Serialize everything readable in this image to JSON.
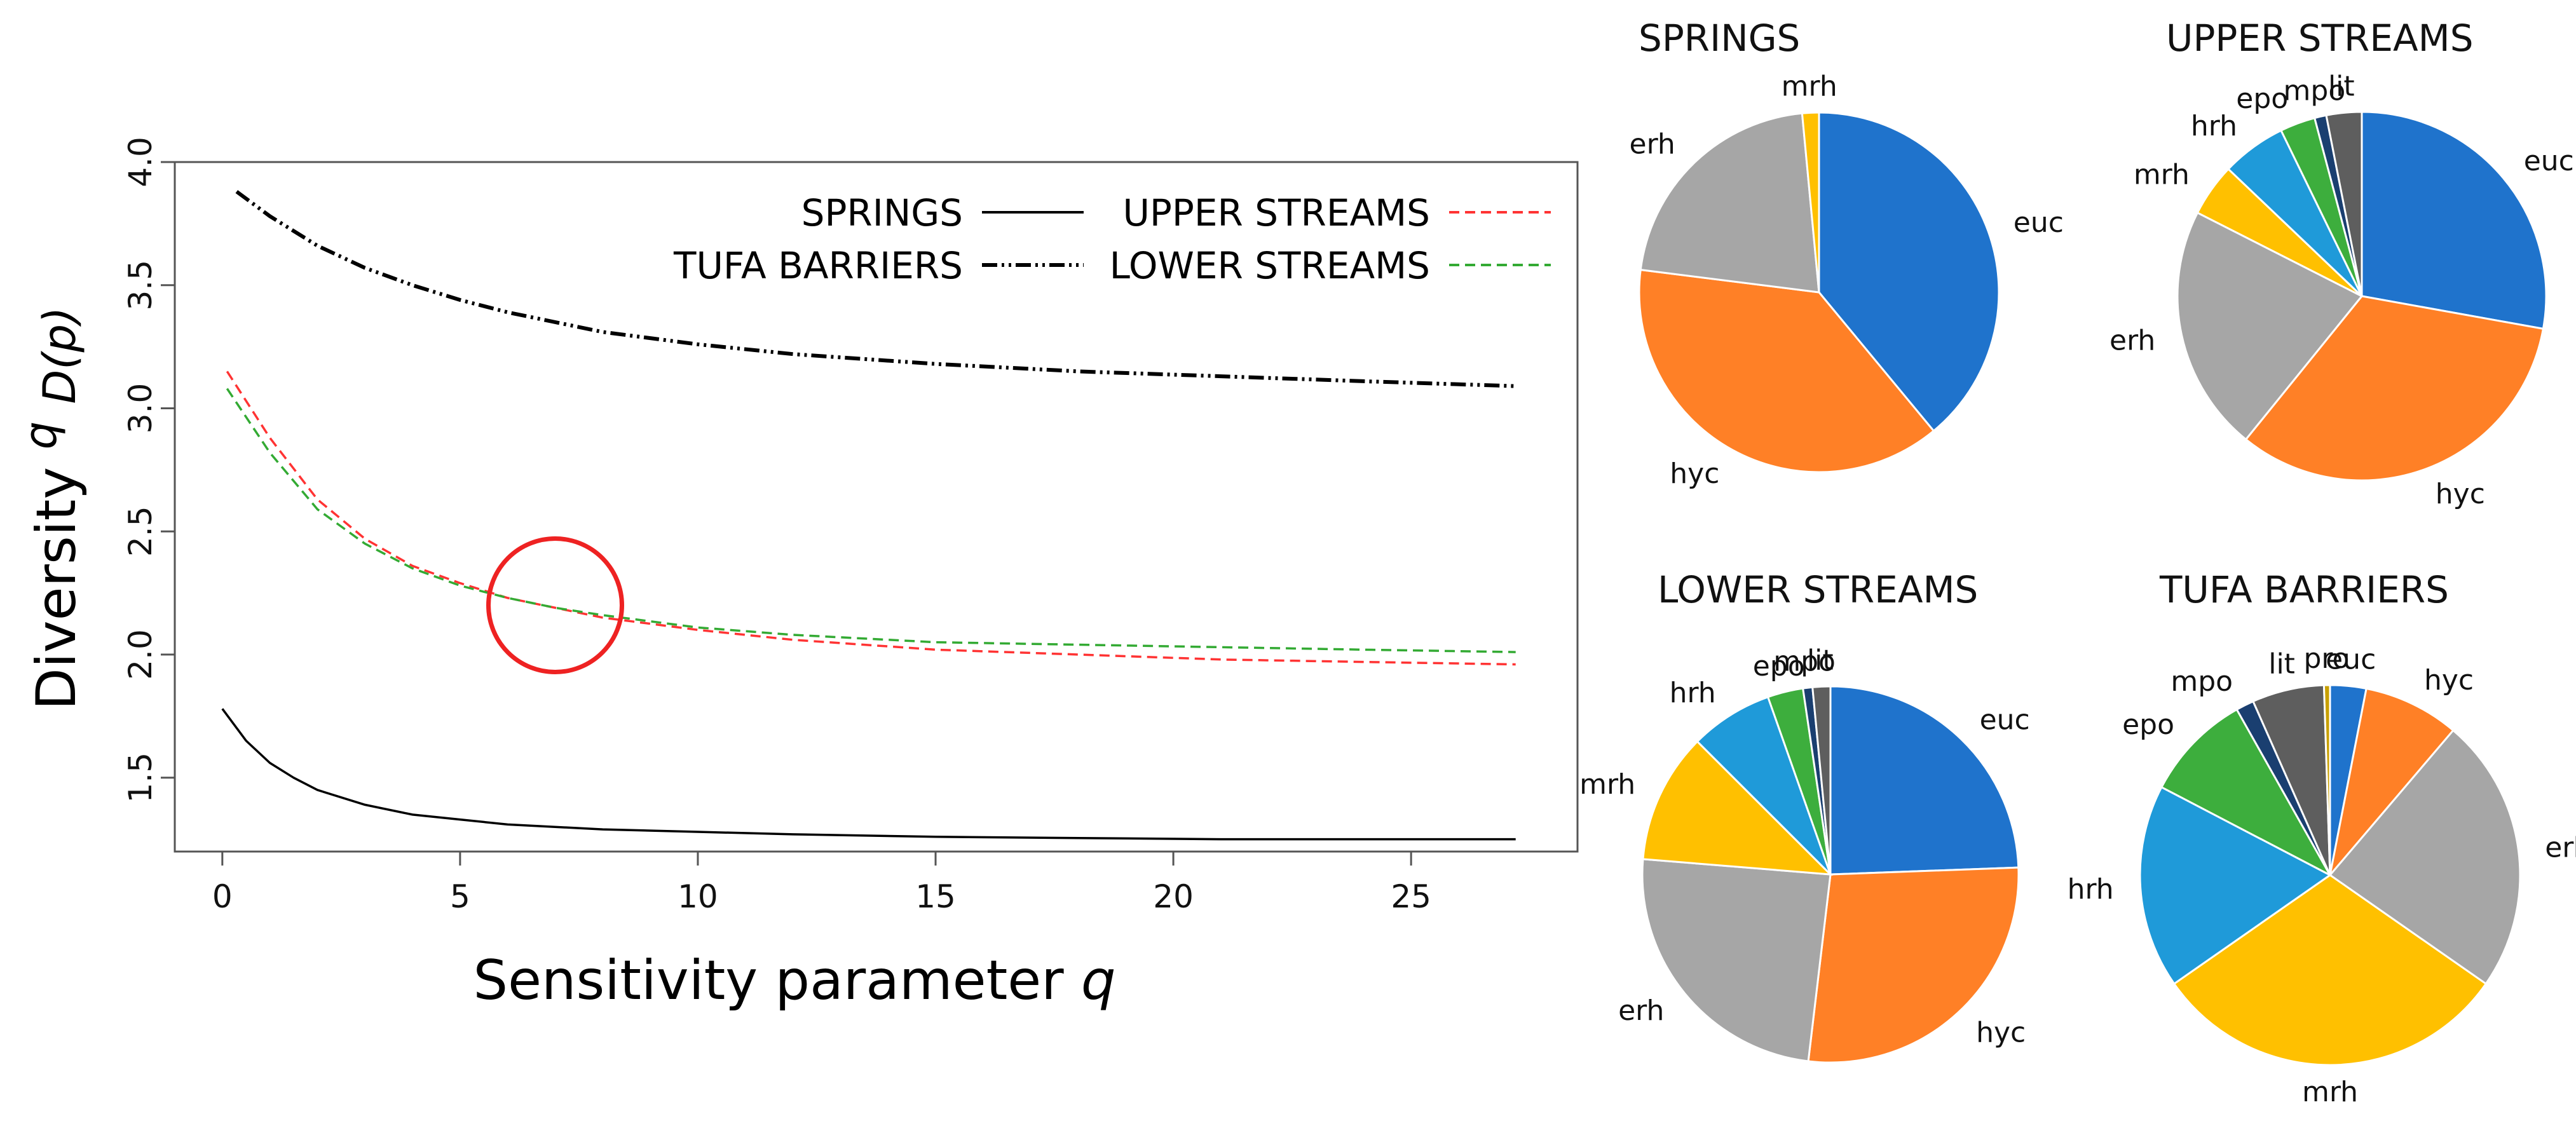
{
  "chart_data": [
    {
      "type": "line",
      "xlabel": "Sensitivity parameter",
      "xlabel_var": "q",
      "ylabel": "Diversity",
      "ylabel_sup": "q",
      "ylabel_sub": "D(p)",
      "xlim": [
        -1,
        28.5
      ],
      "ylim": [
        1.2,
        4.0
      ],
      "xticks": [
        0,
        5,
        10,
        15,
        20,
        25
      ],
      "yticks": [
        1.5,
        2.0,
        2.5,
        3.0,
        3.5,
        4.0
      ],
      "xtick_labels": [
        "0",
        "5",
        "10",
        "15",
        "20",
        "25"
      ],
      "ytick_labels": [
        "1.5",
        "2.0",
        "2.5",
        "3.0",
        "3.5",
        "4.0"
      ],
      "legend": {
        "rows": [
          [
            {
              "label": "SPRINGS",
              "series": 0
            },
            {
              "label": "UPPER STREAMS",
              "series": 1
            }
          ],
          [
            {
              "label": "TUFA BARRIERS",
              "series": 3
            },
            {
              "label": "LOWER STREAMS",
              "series": 2
            }
          ]
        ]
      },
      "annotation": {
        "shape": "circle",
        "color": "#ee2222",
        "x": 7.0,
        "y": 2.2,
        "note": "curve crossing"
      },
      "series": [
        {
          "name": "SPRINGS",
          "color": "#000000",
          "dash": "solid",
          "x": [
            0,
            0.5,
            1,
            1.5,
            2,
            3,
            4,
            5,
            6,
            8,
            10,
            12,
            15,
            18,
            21,
            24,
            27.2
          ],
          "y": [
            1.78,
            1.65,
            1.56,
            1.5,
            1.45,
            1.39,
            1.35,
            1.33,
            1.31,
            1.29,
            1.28,
            1.27,
            1.26,
            1.255,
            1.25,
            1.25,
            1.25
          ]
        },
        {
          "name": "UPPER STREAMS",
          "color": "#ff3333",
          "dash": "dashed",
          "x": [
            0.1,
            1,
            2,
            3,
            4,
            5,
            6,
            7,
            8,
            10,
            12,
            15,
            18,
            21,
            24,
            27.2
          ],
          "y": [
            3.15,
            2.88,
            2.63,
            2.47,
            2.36,
            2.29,
            2.23,
            2.19,
            2.15,
            2.1,
            2.06,
            2.02,
            2.0,
            1.98,
            1.97,
            1.96
          ]
        },
        {
          "name": "LOWER STREAMS",
          "color": "#33aa33",
          "dash": "dashed",
          "x": [
            0.1,
            1,
            2,
            3,
            4,
            5,
            6,
            7,
            8,
            10,
            12,
            15,
            18,
            21,
            24,
            27.2
          ],
          "y": [
            3.08,
            2.82,
            2.59,
            2.45,
            2.35,
            2.28,
            2.23,
            2.19,
            2.16,
            2.11,
            2.08,
            2.05,
            2.04,
            2.03,
            2.02,
            2.01
          ]
        },
        {
          "name": "TUFA BARRIERS",
          "color": "#000000",
          "dash": "dashdotdot",
          "x": [
            0.3,
            1,
            2,
            3,
            4,
            5,
            6,
            8,
            10,
            12,
            15,
            18,
            21,
            24,
            27.2
          ],
          "y": [
            3.88,
            3.78,
            3.66,
            3.57,
            3.5,
            3.44,
            3.39,
            3.31,
            3.26,
            3.22,
            3.18,
            3.15,
            3.13,
            3.11,
            3.09
          ]
        }
      ]
    },
    {
      "type": "pie",
      "title": "SPRINGS",
      "labels": [
        "euc",
        "hyc",
        "erh",
        "mrh"
      ],
      "values": [
        39,
        38,
        21.5,
        1.5
      ],
      "colors": [
        "#1f73cc",
        "#ff8026",
        "#a6a6a6",
        "#ffc000"
      ],
      "label_positions": [
        {
          "label": "euc",
          "position": "right"
        },
        {
          "label": "hyc",
          "position": "bottom-left"
        },
        {
          "label": "erh",
          "position": "top-left"
        },
        {
          "label": "mrh",
          "position": "top"
        }
      ]
    },
    {
      "type": "pie",
      "title": "UPPER STREAMS",
      "labels": [
        "euc",
        "hyc",
        "erh",
        "mrh",
        "hrh",
        "epo",
        "mpo",
        "lit"
      ],
      "values": [
        27,
        32,
        21,
        4.5,
        5.5,
        3,
        1,
        3
      ],
      "colors": [
        "#1f73cc",
        "#ff8026",
        "#a6a6a6",
        "#ffc000",
        "#1f9ad9",
        "#3dae3d",
        "#1a3f70",
        "#5e5e5e"
      ]
    },
    {
      "type": "pie",
      "title": "LOWER STREAMS",
      "labels": [
        "euc",
        "hyc",
        "erh",
        "mrh",
        "hrh",
        "epo",
        "mpo",
        "lit"
      ],
      "values": [
        24,
        27,
        24,
        11,
        7,
        3,
        0.8,
        1.5
      ],
      "colors": [
        "#1f73cc",
        "#ff8026",
        "#a6a6a6",
        "#ffc000",
        "#1f9ad9",
        "#3dae3d",
        "#1a3f70",
        "#5e5e5e"
      ]
    },
    {
      "type": "pie",
      "title": "TUFA BARRIERS",
      "labels": [
        "euc",
        "hyc",
        "erh",
        "mrh",
        "hrh",
        "epo",
        "mpo",
        "lit",
        "pro"
      ],
      "values": [
        3,
        8,
        23,
        30,
        17,
        9,
        1.5,
        6,
        0.5
      ],
      "colors": [
        "#1f73cc",
        "#ff8026",
        "#a6a6a6",
        "#ffc000",
        "#1f9ad9",
        "#3dae3d",
        "#1a3f70",
        "#5e5e5e",
        "#c8a000"
      ]
    }
  ]
}
